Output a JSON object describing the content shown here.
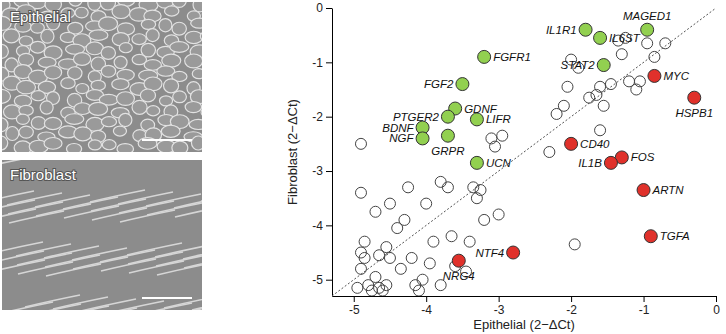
{
  "images": [
    {
      "label": "Epithelial"
    },
    {
      "label": "Fibroblast"
    }
  ],
  "chart_data": {
    "type": "scatter",
    "x_label": "Epithelial (2−ΔCt)",
    "y_label": "Fibroblast (2−ΔCt)",
    "xlim": [
      -5.3,
      0
    ],
    "ylim": [
      -5.3,
      0
    ],
    "xticks": [
      -5,
      -4,
      -3,
      -2,
      -1,
      0
    ],
    "yticks": [
      -5,
      -4,
      -3,
      -2,
      -1,
      0
    ],
    "grid": false,
    "series": [
      {
        "color": "#444444",
        "marker": "open_circle",
        "x": [
          -4.9,
          -4.9,
          -4.85,
          -4.9,
          -4.85,
          -4.9,
          -4.8,
          -4.95,
          -4.7,
          -4.75,
          -4.65,
          -4.6,
          -4.55,
          -4.5,
          -4.5,
          -4.4,
          -4.3,
          -4.25,
          -4.2,
          -4.15,
          -4.1,
          -4.0,
          -3.95,
          -3.9,
          -3.8,
          -3.7,
          -3.65,
          -3.6,
          -3.45,
          -3.4,
          -3.35,
          -3.3,
          -3.25,
          -3.2,
          -3.1,
          -3.05,
          -3.0,
          -2.95,
          -2.3,
          -2.2,
          -2.1,
          -2.05,
          -2.0,
          -1.9,
          -1.75,
          -1.65,
          -1.6,
          -1.55,
          -1.45,
          -1.3,
          -1.2,
          -1.1,
          -1.05,
          -0.95,
          -0.85,
          -0.7,
          -1.25,
          -1.35,
          -1.95,
          -4.05,
          -3.8,
          -4.35,
          -4.65,
          -1.6,
          -4.7,
          -4.55
        ],
        "values": [
          -2.5,
          -3.4,
          -4.3,
          -4.5,
          -4.6,
          -4.8,
          -5.1,
          -5.15,
          -4.95,
          -5.2,
          -5.15,
          -5.2,
          -4.4,
          -4.6,
          -3.6,
          -4.05,
          -3.9,
          -3.3,
          -4.6,
          -5.1,
          -5.2,
          -3.6,
          -4.7,
          -4.3,
          -3.2,
          -3.3,
          -4.2,
          -4.75,
          -4.85,
          -4.3,
          -3.3,
          -3.5,
          -3.35,
          -3.9,
          -2.4,
          -2.55,
          -3.8,
          -2.35,
          -2.65,
          -1.95,
          -1.8,
          -1.45,
          -0.95,
          -1.1,
          -1.65,
          -1.6,
          -1.45,
          -1.8,
          -1.4,
          -0.85,
          -1.35,
          -1.5,
          -1.35,
          -0.65,
          -0.9,
          -0.65,
          -0.55,
          -0.6,
          -4.35,
          -5.0,
          -5.1,
          -4.8,
          -4.55,
          -2.25,
          -3.75,
          -5.1
        ]
      },
      {
        "color": "#92d050",
        "marker": "filled_circle",
        "labels": [
          "IL1R1",
          "MAGED1",
          "IL6ST",
          "STAT2",
          "FGFR1",
          "FGF2",
          "GDNF",
          "PTGER2",
          "LIFR",
          "BDNF",
          "NGF",
          "GRPR",
          "UCN"
        ],
        "x": [
          -1.8,
          -0.95,
          -1.6,
          -1.55,
          -3.2,
          -3.5,
          -3.6,
          -3.7,
          -3.3,
          -4.05,
          -4.05,
          -3.7,
          -3.3
        ],
        "values": [
          -0.4,
          -0.4,
          -0.55,
          -1.05,
          -0.9,
          -1.4,
          -1.85,
          -2.0,
          -2.05,
          -2.2,
          -2.4,
          -2.35,
          -2.85
        ]
      },
      {
        "color": "#e0312b",
        "marker": "filled_circle",
        "labels": [
          "MYC",
          "HSPB1",
          "CD40",
          "FOS",
          "IL1B",
          "ARTN",
          "TGFA",
          "NTF4",
          "NRG4"
        ],
        "x": [
          -0.85,
          -0.3,
          -2.0,
          -1.3,
          -1.45,
          -1.0,
          -0.9,
          -2.8,
          -3.55
        ],
        "values": [
          -1.25,
          -1.65,
          -2.5,
          -2.75,
          -2.85,
          -3.35,
          -4.2,
          -4.5,
          -4.65
        ]
      }
    ]
  }
}
